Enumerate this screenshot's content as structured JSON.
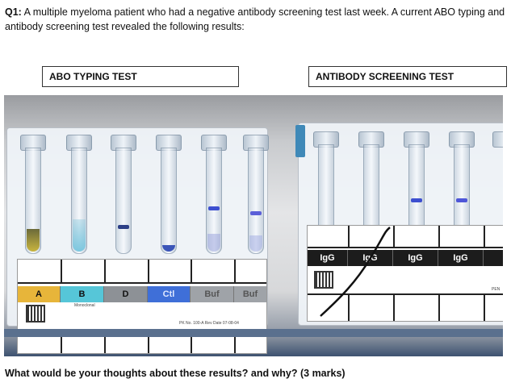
{
  "question": {
    "number": "Q1:",
    "text": "A multiple myeloma patient who had a negative antibody screening test last week. A current ABO typing and antibody screening test revealed the following results:"
  },
  "boxes": {
    "abo": "ABO TYPING TEST",
    "antibody": "ANTIBODY SCREENING TEST"
  },
  "abo_card": {
    "cells": [
      {
        "label": "A",
        "color": "#e7b53a"
      },
      {
        "label": "B",
        "color": "#56c6d8"
      },
      {
        "label": "D",
        "color": "#8d9196"
      },
      {
        "label": "Ctl",
        "color": "#3f6fd8"
      },
      {
        "label": "Buf",
        "color": "#9fa3a8"
      },
      {
        "label": "Buf",
        "color": "#9fa3a8"
      }
    ],
    "monoclonal": "Monoclonal",
    "lot_text": "PK No. 100-A   Rev Date 07-08-04"
  },
  "ab_card": {
    "cells": [
      "IgG",
      "IgG",
      "IgG",
      "IgG"
    ],
    "edge_text": "PEN"
  },
  "footer": "What would be your thoughts about these results? and why? (3 marks)"
}
